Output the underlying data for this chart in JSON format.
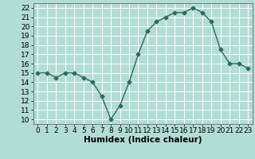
{
  "x": [
    0,
    1,
    2,
    3,
    4,
    5,
    6,
    7,
    8,
    9,
    10,
    11,
    12,
    13,
    14,
    15,
    16,
    17,
    18,
    19,
    20,
    21,
    22,
    23
  ],
  "y": [
    15,
    15,
    14.5,
    15,
    15,
    14.5,
    14,
    12.5,
    10,
    11.5,
    14,
    17,
    19.5,
    20.5,
    21,
    21.5,
    21.5,
    22,
    21.5,
    20.5,
    17.5,
    16,
    16,
    15.5
  ],
  "line_color": "#2e6b5e",
  "marker": "D",
  "marker_size": 2.5,
  "bg_color": "#b2ddd4",
  "grid_color": "#ffffff",
  "xlabel": "Humidex (Indice chaleur)",
  "ylim": [
    9.5,
    22.5
  ],
  "yticks": [
    10,
    11,
    12,
    13,
    14,
    15,
    16,
    17,
    18,
    19,
    20,
    21,
    22
  ],
  "xticks": [
    0,
    1,
    2,
    3,
    4,
    5,
    6,
    7,
    8,
    9,
    10,
    11,
    12,
    13,
    14,
    15,
    16,
    17,
    18,
    19,
    20,
    21,
    22,
    23
  ],
  "xlim": [
    -0.5,
    23.5
  ],
  "xlabel_fontsize": 7.5,
  "tick_fontsize": 6.5,
  "linewidth": 1.0
}
